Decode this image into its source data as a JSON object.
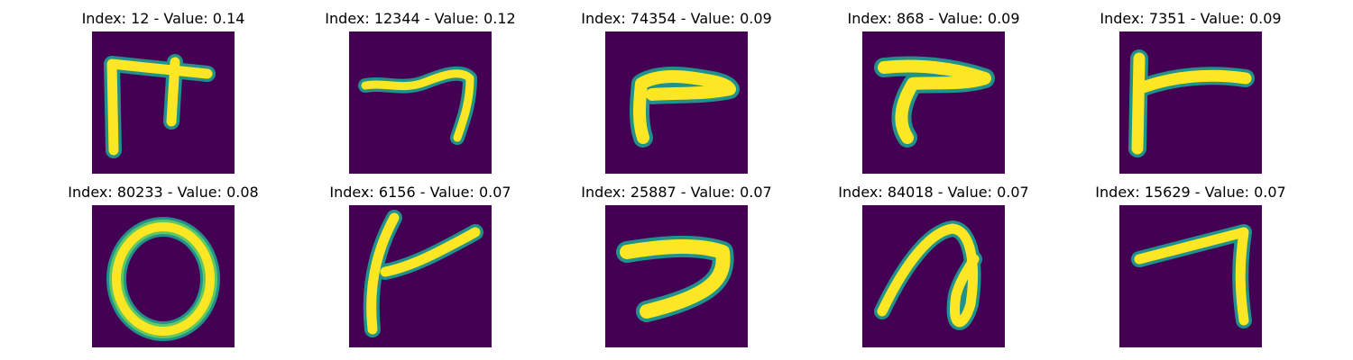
{
  "colors": {
    "background": "#440154",
    "edge": "#21918c",
    "mid": "#5ec962",
    "stroke": "#fde725"
  },
  "panels": [
    {
      "title": "Index: 12 - Value: 0.14",
      "glyph": "digit-like-stroke-image"
    },
    {
      "title": "Index: 12344 - Value: 0.12",
      "glyph": "digit-like-stroke-image"
    },
    {
      "title": "Index: 74354 - Value: 0.09",
      "glyph": "digit-like-stroke-image"
    },
    {
      "title": "Index: 868 - Value: 0.09",
      "glyph": "digit-like-stroke-image"
    },
    {
      "title": "Index: 7351 - Value: 0.09",
      "glyph": "digit-like-stroke-image"
    },
    {
      "title": "Index: 80233 - Value: 0.08",
      "glyph": "digit-like-stroke-image"
    },
    {
      "title": "Index: 6156 - Value: 0.07",
      "glyph": "digit-like-stroke-image"
    },
    {
      "title": "Index: 25887 - Value: 0.07",
      "glyph": "digit-like-stroke-image"
    },
    {
      "title": "Index: 84018 - Value: 0.07",
      "glyph": "digit-like-stroke-image"
    },
    {
      "title": "Index: 15629 - Value: 0.07",
      "glyph": "digit-like-stroke-image"
    }
  ]
}
